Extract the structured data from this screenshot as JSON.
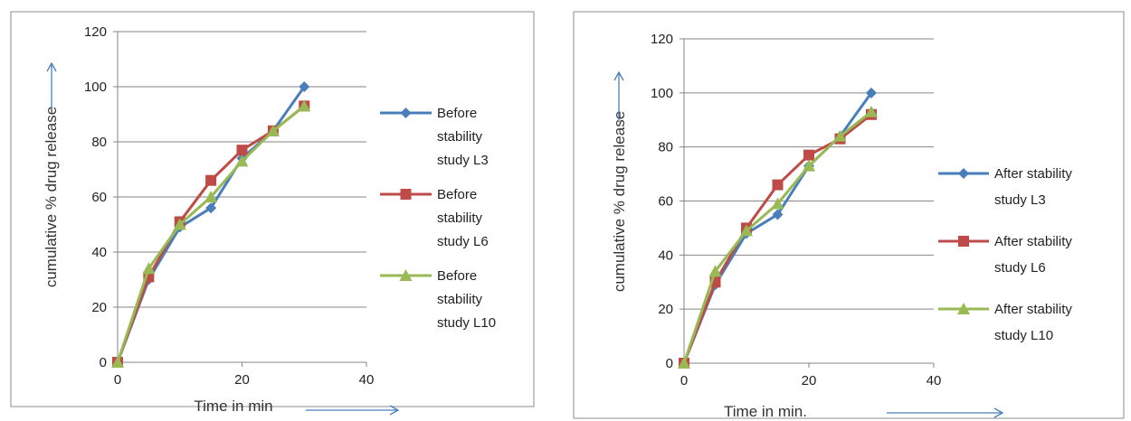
{
  "chart_data": [
    {
      "type": "line",
      "title": "",
      "xlabel": "Time in min",
      "ylabel": "cumulative % drug release",
      "xlim": [
        0,
        40
      ],
      "ylim": [
        0,
        120
      ],
      "xticks": [
        "0",
        "20",
        "40"
      ],
      "yticks": [
        "0",
        "20",
        "40",
        "60",
        "80",
        "100",
        "120"
      ],
      "grid": "horizontal",
      "legend": "right",
      "x": [
        0,
        5,
        10,
        15,
        20,
        25,
        30
      ],
      "series": [
        {
          "name": [
            "Before",
            "stability",
            "study L3"
          ],
          "color": "#4a7ebb",
          "marker": "diamond",
          "values": [
            0,
            30,
            49,
            56,
            74,
            84,
            100
          ]
        },
        {
          "name": [
            "Before",
            "stability",
            "study L6"
          ],
          "color": "#be4b48",
          "marker": "square",
          "values": [
            0,
            31,
            51,
            66,
            77,
            84,
            93
          ]
        },
        {
          "name": [
            "Before",
            "stability",
            "study L10"
          ],
          "color": "#98b954",
          "marker": "triangle",
          "values": [
            0,
            34,
            50,
            60,
            73,
            84,
            93
          ]
        }
      ]
    },
    {
      "type": "line",
      "title": "",
      "xlabel": "Time in min.",
      "ylabel": "cumulative % drug release",
      "xlim": [
        0,
        40
      ],
      "ylim": [
        0,
        120
      ],
      "xticks": [
        "0",
        "20",
        "40"
      ],
      "yticks": [
        "0",
        "20",
        "40",
        "60",
        "80",
        "100",
        "120"
      ],
      "grid": "horizontal",
      "legend": "right",
      "x": [
        0,
        5,
        10,
        15,
        20,
        25,
        30
      ],
      "series": [
        {
          "name": [
            "After stability",
            "study L3"
          ],
          "color": "#4a7ebb",
          "marker": "diamond",
          "values": [
            0,
            29,
            48,
            55,
            73,
            84,
            100
          ]
        },
        {
          "name": [
            "After stability",
            "study L6"
          ],
          "color": "#be4b48",
          "marker": "square",
          "values": [
            0,
            30,
            50,
            66,
            77,
            83,
            92
          ]
        },
        {
          "name": [
            "After stability",
            "study L10"
          ],
          "color": "#98b954",
          "marker": "triangle",
          "values": [
            0,
            34,
            49,
            59,
            73,
            84,
            93
          ]
        }
      ]
    }
  ]
}
